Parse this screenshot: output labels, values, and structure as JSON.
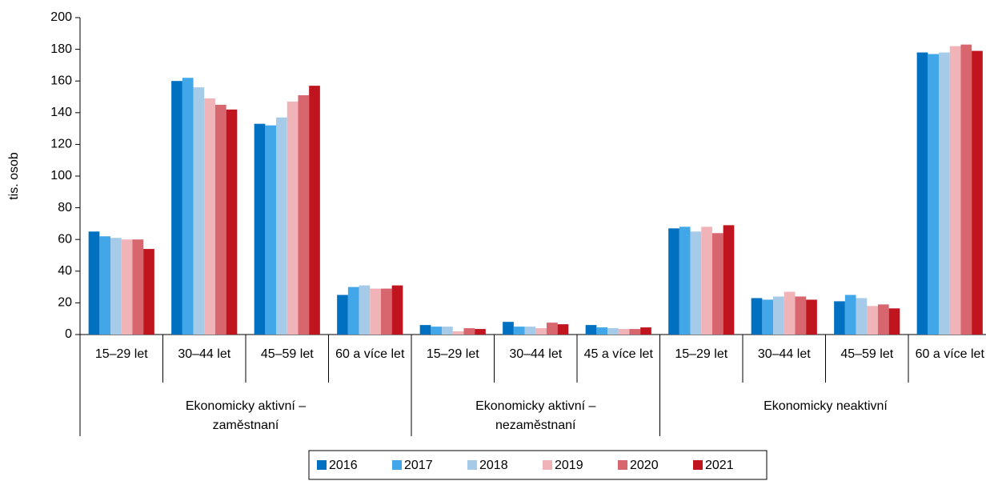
{
  "chart_data": {
    "type": "bar",
    "ylabel": "tis. osob",
    "groups": [
      {
        "label": "Ekonomicky aktivní – zaměstnaní",
        "categories": [
          "15–29 let",
          "30–44 let",
          "45–59 let",
          "60 a více let"
        ]
      },
      {
        "label": "Ekonomicky aktivní – nezaměstnaní",
        "categories": [
          "15–29 let",
          "30–44 let",
          "45 a více let"
        ]
      },
      {
        "label": "Ekonomicky neaktivní",
        "categories": [
          "15–29 let",
          "30–44 let",
          "45–59 let",
          "60 a více let"
        ]
      }
    ],
    "series": [
      {
        "name": "2016",
        "color": "#0070c0",
        "values": [
          65,
          160,
          133,
          25,
          6,
          8,
          6,
          67,
          23,
          21,
          178
        ]
      },
      {
        "name": "2017",
        "color": "#41a7e8",
        "values": [
          62,
          162,
          132,
          30,
          5,
          5,
          4.5,
          68,
          22,
          25,
          177
        ]
      },
      {
        "name": "2018",
        "color": "#a6cbe9",
        "values": [
          61,
          156,
          137,
          31,
          5,
          5,
          4,
          65,
          24,
          23,
          178
        ]
      },
      {
        "name": "2019",
        "color": "#f0b3b8",
        "values": [
          60,
          149,
          147,
          29,
          2,
          4,
          3.5,
          68,
          27,
          18,
          182
        ]
      },
      {
        "name": "2020",
        "color": "#d8666f",
        "values": [
          60,
          145,
          151,
          29,
          4,
          7.5,
          3.5,
          64,
          24,
          19,
          183
        ]
      },
      {
        "name": "2021",
        "color": "#c0141f",
        "values": [
          54,
          142,
          157,
          31,
          3.5,
          6.5,
          4.5,
          69,
          22,
          16.5,
          179
        ]
      }
    ],
    "ylim": [
      0,
      200
    ],
    "yticks": [
      0,
      20,
      40,
      60,
      80,
      100,
      120,
      140,
      160,
      180,
      200
    ],
    "grid": false,
    "legend": "bottom"
  }
}
